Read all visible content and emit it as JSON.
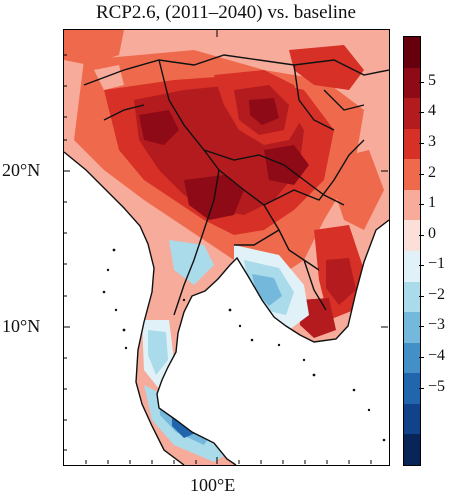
{
  "title": "RCP2.6, (2011–2040) vs. baseline",
  "latitude_labels": [
    "20°N",
    "10°N"
  ],
  "longitude_labels": [
    "100°E"
  ],
  "colorbar": {
    "labels": [
      "5",
      "4",
      "3",
      "2",
      "1",
      "0",
      "−1",
      "−2",
      "−3",
      "−4",
      "−5"
    ],
    "colors": [
      "#67000d",
      "#8e0a16",
      "#b31b1e",
      "#d73027",
      "#ef6a4c",
      "#f7ab9a",
      "#fbe0da",
      "#e0f2f8",
      "#a9dbea",
      "#74b8dc",
      "#4290c6",
      "#2166ac",
      "#11428a",
      "#08255a"
    ]
  }
}
